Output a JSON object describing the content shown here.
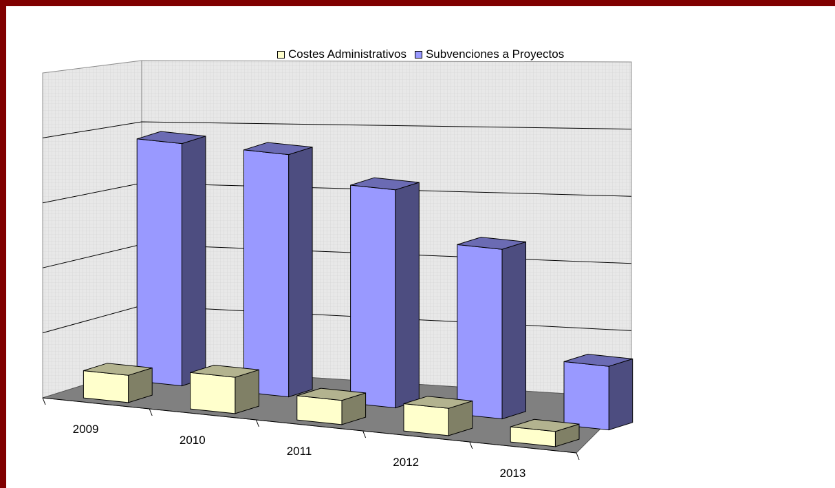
{
  "chart_data": {
    "type": "bar",
    "categories": [
      "2009",
      "2010",
      "2011",
      "2012",
      "2013"
    ],
    "series": [
      {
        "name": "Costes Administrativos",
        "values": [
          0.45,
          0.6,
          0.4,
          0.45,
          0.25
        ],
        "color": "#ffffcc"
      },
      {
        "name": "Subvenciones a Proyectos",
        "values": [
          4.0,
          4.0,
          3.6,
          2.8,
          1.05
        ],
        "color": "#9999ff"
      }
    ],
    "title": "",
    "xlabel": "",
    "ylabel": "",
    "ylim": [
      0,
      5
    ],
    "grid": true,
    "legend_position": "top",
    "style": "3d-clustered-column",
    "colors": {
      "frame": "#800000",
      "floor": "#808080",
      "wall": "#e4e4e4"
    }
  }
}
